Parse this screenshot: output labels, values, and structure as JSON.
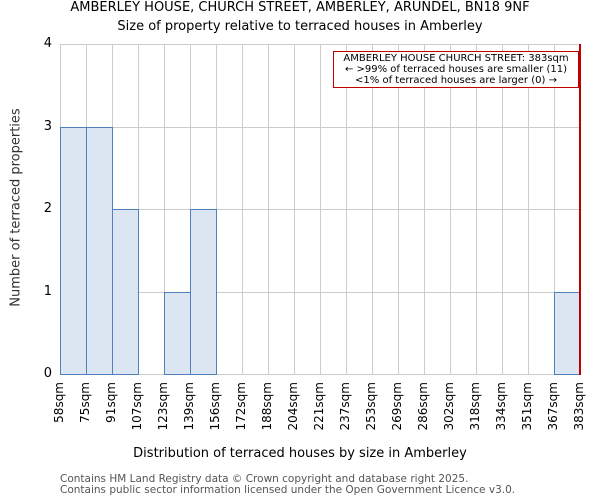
{
  "title": "AMBERLEY HOUSE, CHURCH STREET, AMBERLEY, ARUNDEL, BN18 9NF",
  "subtitle": "Size of property relative to terraced houses in Amberley",
  "annotation": {
    "line1": "AMBERLEY HOUSE CHURCH STREET: 383sqm",
    "line2": "← >99% of terraced houses are smaller (11)",
    "line3": "<1% of terraced houses are larger (0) →"
  },
  "footer": {
    "line1": "Contains HM Land Registry data © Crown copyright and database right 2025.",
    "line2": "Contains public sector information licensed under the Open Government Licence v3.0."
  },
  "colors": {
    "bar_fill": "#dce6f2",
    "bar_edge": "#4f81bd",
    "marker": "#c00000",
    "grid": "#cccccc"
  },
  "chart_data": {
    "type": "bar",
    "title": "AMBERLEY HOUSE, CHURCH STREET, AMBERLEY, ARUNDEL, BN18 9NF",
    "subtitle": "Size of property relative to terraced houses in Amberley",
    "xlabel": "Distribution of terraced houses by size in Amberley",
    "ylabel": "Number of terraced properties",
    "categories": [
      "58sqm",
      "75sqm",
      "91sqm",
      "107sqm",
      "123sqm",
      "139sqm",
      "156sqm",
      "172sqm",
      "188sqm",
      "204sqm",
      "221sqm",
      "237sqm",
      "253sqm",
      "269sqm",
      "286sqm",
      "302sqm",
      "318sqm",
      "334sqm",
      "351sqm",
      "367sqm",
      "383sqm"
    ],
    "values": [
      3,
      3,
      2,
      0,
      1,
      2,
      0,
      0,
      0,
      0,
      0,
      0,
      0,
      0,
      0,
      0,
      0,
      0,
      0,
      1
    ],
    "yticks": [
      0,
      1,
      2,
      3,
      4
    ],
    "ylim": [
      0,
      4
    ],
    "grid": true,
    "marker": {
      "value": "383sqm",
      "label": "AMBERLEY HOUSE CHURCH STREET: 383sqm"
    },
    "annotations": [
      "AMBERLEY HOUSE CHURCH STREET: 383sqm",
      "← >99% of terraced houses are smaller (11)",
      "<1% of terraced houses are larger (0) →"
    ]
  }
}
